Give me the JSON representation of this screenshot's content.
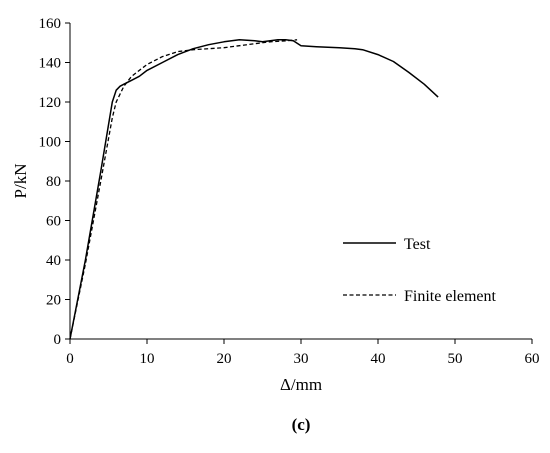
{
  "chart_data": {
    "type": "line",
    "xlabel": "Δ/mm",
    "ylabel": "P/kN",
    "xlim": [
      0,
      60
    ],
    "ylim": [
      0,
      160
    ],
    "xticks": [
      0,
      10,
      20,
      30,
      40,
      50,
      60
    ],
    "yticks": [
      0,
      20,
      40,
      60,
      80,
      100,
      120,
      140,
      160
    ],
    "grid": false,
    "legend_position": "right",
    "panel_label": "(c)",
    "series": [
      {
        "name": "Test",
        "style": "solid",
        "x": [
          0,
          2,
          4,
          5.5,
          6,
          6.5,
          7,
          8,
          9,
          10,
          12,
          14,
          16,
          18,
          20,
          22,
          24,
          25,
          26,
          27,
          28,
          29,
          30,
          32,
          35,
          37,
          38,
          40,
          42,
          44,
          46,
          47.8
        ],
        "y": [
          0,
          40,
          85,
          120,
          126,
          128,
          129,
          131,
          133,
          136,
          140,
          144,
          147,
          149,
          150.5,
          151.5,
          151,
          150.5,
          151,
          151.5,
          151.5,
          151,
          148.5,
          148,
          147.5,
          147,
          146.5,
          144,
          140.5,
          135,
          129,
          122.5
        ]
      },
      {
        "name": "Finite element",
        "style": "dashed",
        "x": [
          0,
          2,
          4,
          5.5,
          6,
          7,
          8,
          10,
          12,
          14,
          16,
          18,
          20,
          22,
          24,
          26,
          28,
          29.5
        ],
        "y": [
          0,
          38,
          80,
          112,
          120,
          128,
          133,
          139,
          143,
          145.5,
          146.5,
          147,
          147.5,
          148.5,
          149.5,
          150.5,
          151,
          151.5
        ]
      }
    ]
  }
}
